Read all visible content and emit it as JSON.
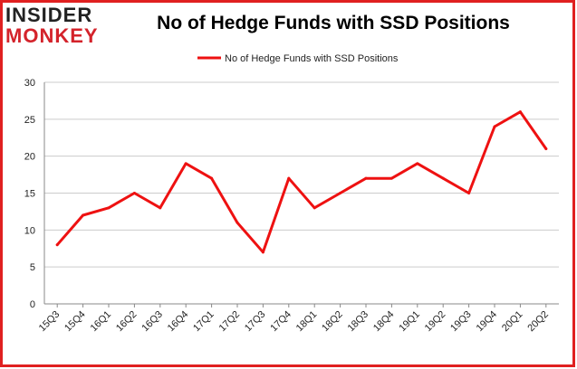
{
  "brand": {
    "logo_top": "INSIDER",
    "logo_bottom": "MONKEY"
  },
  "colors": {
    "line": "#ee1111",
    "border": "#e02020",
    "grid": "#cccccc",
    "axis": "#888888"
  },
  "chart_data": {
    "type": "line",
    "title": "No of Hedge Funds with SSD Positions",
    "xlabel": "",
    "ylabel": "",
    "ylim": [
      0,
      30
    ],
    "yticks": [
      0,
      5,
      10,
      15,
      20,
      25,
      30
    ],
    "grid": true,
    "legend_position": "top-center",
    "categories": [
      "15Q3",
      "15Q4",
      "16Q1",
      "16Q2",
      "16Q3",
      "16Q4",
      "17Q1",
      "17Q2",
      "17Q3",
      "17Q4",
      "18Q1",
      "18Q2",
      "18Q3",
      "18Q4",
      "19Q1",
      "19Q2",
      "19Q3",
      "19Q4",
      "20Q1",
      "20Q2"
    ],
    "series": [
      {
        "name": "No of Hedge Funds with SSD Positions",
        "values": [
          8,
          12,
          13,
          15,
          13,
          19,
          17,
          11,
          7,
          17,
          13,
          15,
          17,
          17,
          19,
          17,
          15,
          24,
          26,
          21
        ]
      }
    ]
  }
}
